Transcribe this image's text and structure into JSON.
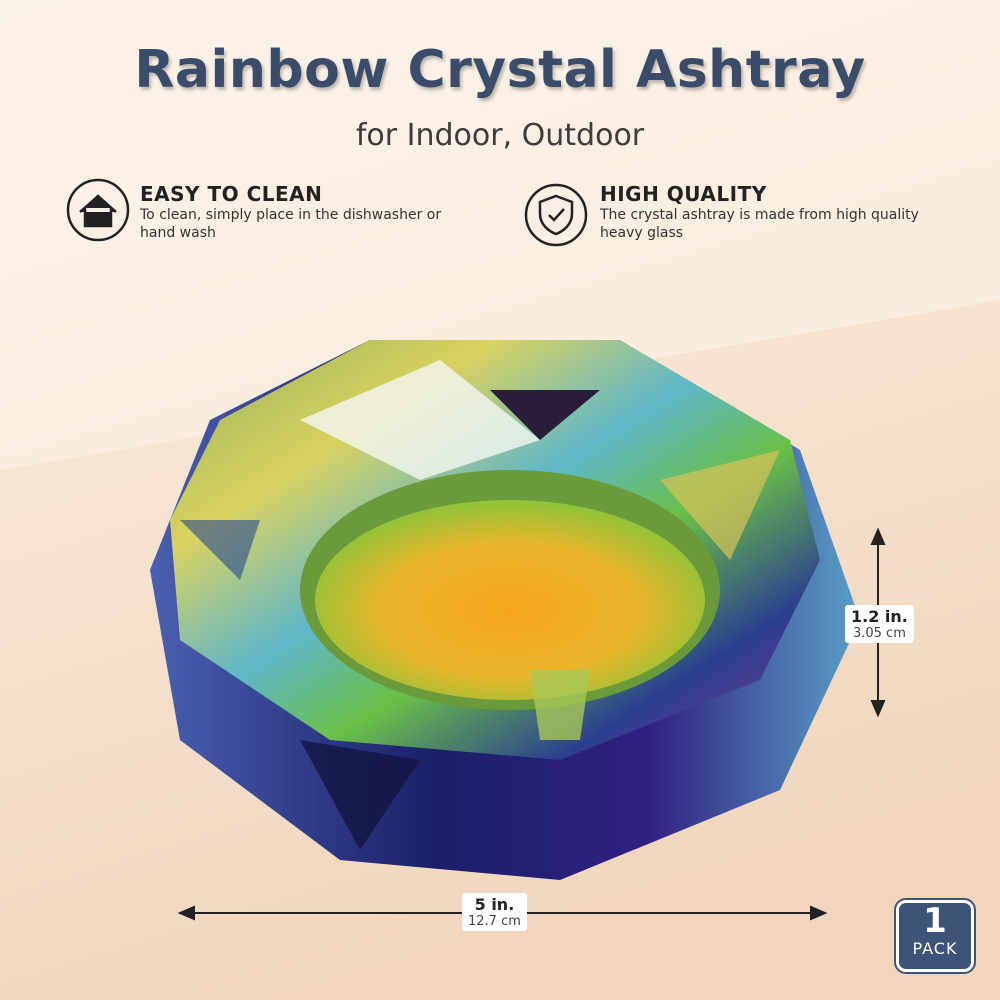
{
  "header": {
    "title": "Rainbow Crystal Ashtray",
    "subtitle": "for Indoor, Outdoor"
  },
  "features": [
    {
      "title": "EASY TO CLEAN",
      "text": "To clean, simply place in the dishwasher or hand wash"
    },
    {
      "title": "HIGH QUALITY",
      "text": "The crystal ashtray is made from high quality heavy glass"
    }
  ],
  "dimensions": {
    "height": {
      "imperial": "1.2 in.",
      "metric": "3.05 cm"
    },
    "width": {
      "imperial": "5 in.",
      "metric": "12.7 cm"
    }
  },
  "badge": {
    "count": "1",
    "label": "PACK"
  }
}
